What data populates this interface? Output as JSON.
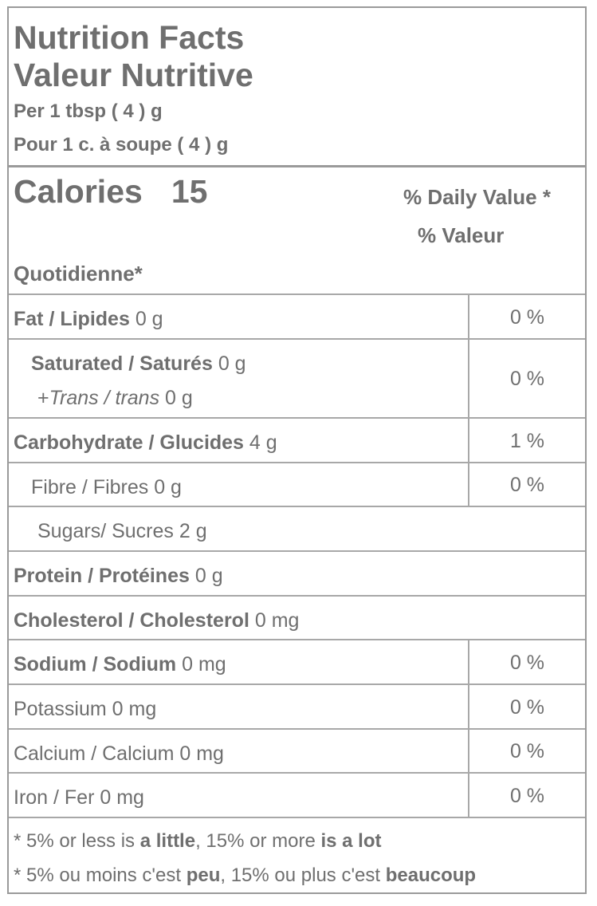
{
  "header": {
    "title_en": "Nutrition Facts",
    "title_fr": "Valeur Nutritive",
    "serving_en": "Per 1 tbsp ( 4 ) g",
    "serving_fr": "Pour 1 c. à soupe ( 4 ) g"
  },
  "calories": {
    "label": "Calories",
    "value": "15"
  },
  "daily_value": {
    "line1": "% Daily Value *",
    "line2": "% Valeur",
    "line3": "Quotidienne*"
  },
  "rows": {
    "fat": {
      "label": "Fat / Lipides",
      "amount": "0 g",
      "percent": "0 %"
    },
    "saturated": {
      "label": "Saturated / Saturés",
      "amount": "0 g",
      "percent": "0 %"
    },
    "trans": {
      "prefix": "+",
      "label": "Trans / trans",
      "amount": "0 g"
    },
    "carbohydrate": {
      "label": "Carbohydrate / Glucides",
      "amount": "4 g",
      "percent": "1 %"
    },
    "fibre": {
      "label": "Fibre / Fibres 0 g",
      "percent": "0 %"
    },
    "sugars": {
      "label": "Sugars/ Sucres 2 g"
    },
    "protein": {
      "label": "Protein / Protéines",
      "amount": "0 g"
    },
    "cholesterol": {
      "label": "Cholesterol / Cholesterol",
      "amount": "0 mg"
    },
    "sodium": {
      "label": "Sodium / Sodium",
      "amount": "0 mg",
      "percent": "0 %"
    },
    "potassium": {
      "label": "Potassium 0 mg",
      "percent": "0 %"
    },
    "calcium": {
      "label": "Calcium / Calcium 0 mg",
      "percent": "0 %"
    },
    "iron": {
      "label": "Iron / Fer 0 mg",
      "percent": "0 %"
    }
  },
  "footer": {
    "en": {
      "a": "* 5% or less is ",
      "b": "a little",
      "c": ", 15% or more ",
      "d": "is a lot"
    },
    "fr": {
      "a": "* 5% ou moins c'est ",
      "b": "peu",
      "c": ", 15% ou plus c'est ",
      "d": "beaucoup"
    }
  },
  "colors": {
    "text": "#6f6f6f",
    "border": "#9a9a9a",
    "background": "#ffffff"
  }
}
